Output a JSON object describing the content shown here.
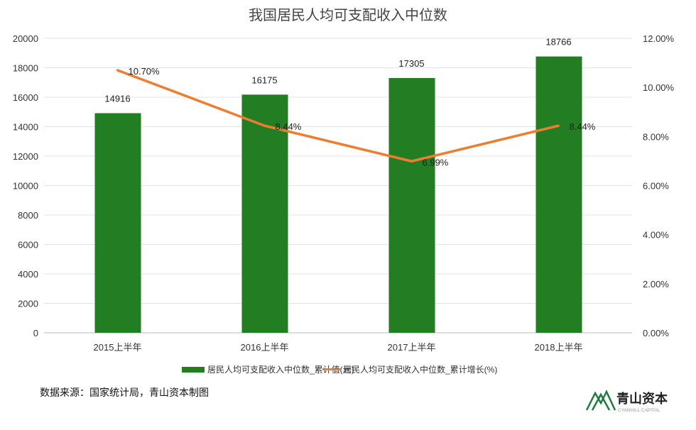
{
  "chart_data": {
    "type": "bar+line",
    "title": "我国居民人均可支配收入中位数",
    "categories": [
      "2015上半年",
      "2016上半年",
      "2017上半年",
      "2018上半年"
    ],
    "series": [
      {
        "name": "居民人均可支配收入中位数_累计值(元)",
        "type": "bar",
        "axis": "left",
        "values": [
          14916,
          16175,
          17305,
          18766
        ],
        "labels": [
          "14916",
          "16175",
          "17305",
          "18766"
        ],
        "color": "#237d23"
      },
      {
        "name": "居民人均可支配收入中位数_累计增长(%)",
        "type": "line",
        "axis": "right",
        "values": [
          10.7,
          8.44,
          6.99,
          8.44
        ],
        "labels": [
          "10.70%",
          "8.44%",
          "6.99%",
          "8.44%"
        ],
        "color": "#ed7d31"
      }
    ],
    "y_left": {
      "range": [
        0,
        20000
      ],
      "ticks": [
        "0",
        "2000",
        "4000",
        "6000",
        "8000",
        "10000",
        "12000",
        "14000",
        "16000",
        "18000",
        "20000"
      ]
    },
    "y_right": {
      "range": [
        0,
        12
      ],
      "ticks": [
        "0.00%",
        "2.00%",
        "4.00%",
        "6.00%",
        "8.00%",
        "10.00%",
        "12.00%"
      ]
    },
    "grid": true,
    "legend": "bottom"
  },
  "source": "数据来源：国家统计局，青山资本制图",
  "logo": {
    "name": "青山资本",
    "sub": "CYANHILL CAPITAL",
    "color": "#1f7a3d"
  }
}
